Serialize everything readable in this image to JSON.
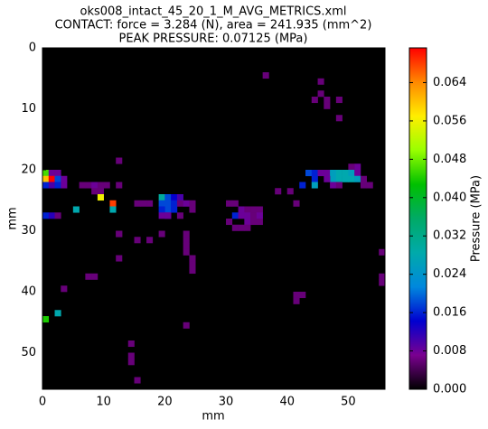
{
  "chart_data": {
    "type": "heatmap",
    "title": [
      "oks008_intact_45_20_1_M_AVG_METRICS.xml",
      "CONTACT: force = 3.284 (N), area = 241.935 (mm^2)",
      "PEAK PRESSURE: 0.07125 (MPa)"
    ],
    "xlabel": "mm",
    "ylabel": "mm",
    "colorbar_label": "Pressure (MPa)",
    "xlim": [
      0,
      56
    ],
    "ylim": [
      56,
      0
    ],
    "xticks": [
      0,
      10,
      20,
      30,
      40,
      50
    ],
    "yticks": [
      0,
      10,
      20,
      30,
      40,
      50
    ],
    "clim": [
      0,
      0.07125
    ],
    "cticks": [
      {
        "value": 0,
        "label": "0.000"
      },
      {
        "value": 0.008,
        "label": "0.008"
      },
      {
        "value": 0.016,
        "label": "0.016"
      },
      {
        "value": 0.024,
        "label": "0.024"
      },
      {
        "value": 0.032,
        "label": "0.032"
      },
      {
        "value": 0.04,
        "label": "0.040"
      },
      {
        "value": 0.048,
        "label": "0.048"
      },
      {
        "value": 0.056,
        "label": "0.056"
      },
      {
        "value": 0.064,
        "label": "0.064"
      }
    ],
    "background": "#000000",
    "colormap": [
      "#000000",
      "#7a0090",
      "#0000d0",
      "#0088dd",
      "#00aaaa",
      "#00aa66",
      "#00c000",
      "#99ff00",
      "#ffee00",
      "#ff8800",
      "#ff0000"
    ],
    "x": [
      36,
      45,
      45,
      44,
      46,
      46,
      48,
      48,
      51,
      50,
      0,
      1,
      2,
      0,
      1,
      2,
      3,
      0,
      1,
      2,
      3,
      6,
      7,
      8,
      9,
      10,
      12,
      8,
      9,
      9,
      11,
      11,
      5,
      0,
      1,
      2,
      12,
      15,
      16,
      17,
      19,
      20,
      21,
      22,
      19,
      20,
      21,
      22,
      23,
      24,
      20,
      21,
      19,
      20,
      22,
      24,
      19,
      20,
      30,
      31,
      32,
      33,
      34,
      35,
      31,
      32,
      33,
      34,
      35,
      30,
      33,
      34,
      35,
      31,
      32,
      33,
      43,
      44,
      45,
      46,
      47,
      48,
      49,
      50,
      51,
      44,
      47,
      48,
      49,
      50,
      51,
      52,
      42,
      44,
      46,
      47,
      48,
      53,
      52,
      38,
      40,
      41,
      12,
      12,
      12,
      15,
      17,
      19,
      23,
      23,
      23,
      23,
      24,
      24,
      24,
      8,
      7,
      3,
      2,
      0,
      23,
      14,
      14,
      14,
      15,
      41,
      42,
      41,
      55,
      55,
      55
    ],
    "y": [
      4,
      5,
      7,
      8,
      8,
      9,
      8,
      11,
      19,
      19,
      20,
      20,
      20,
      21,
      21,
      21,
      21,
      22,
      22,
      22,
      22,
      22,
      22,
      22,
      22,
      22,
      22,
      23,
      23,
      24,
      25,
      26,
      26,
      27,
      27,
      27,
      18,
      25,
      25,
      25,
      24,
      24,
      24,
      24,
      25,
      25,
      25,
      25,
      25,
      25,
      26,
      26,
      26,
      27,
      27,
      26,
      27,
      27,
      25,
      25,
      26,
      26,
      26,
      26,
      27,
      27,
      27,
      27,
      27,
      28,
      28,
      28,
      28,
      29,
      29,
      29,
      20,
      20,
      20,
      20,
      20,
      20,
      20,
      20,
      20,
      21,
      21,
      21,
      21,
      21,
      21,
      21,
      22,
      22,
      21,
      22,
      22,
      22,
      22,
      23,
      23,
      25,
      30,
      30,
      34,
      31,
      31,
      30,
      30,
      31,
      32,
      33,
      34,
      35,
      36,
      37,
      37,
      39,
      43,
      44,
      45,
      48,
      50,
      51,
      54,
      40,
      40,
      41,
      33,
      37,
      38
    ],
    "values": [
      0.006,
      0.006,
      0.006,
      0.006,
      0.006,
      0.006,
      0.006,
      0.006,
      0.008,
      0.006,
      0.046,
      0.008,
      0.008,
      0.06,
      0.07125,
      0.018,
      0.008,
      0.016,
      0.01,
      0.016,
      0.008,
      0.006,
      0.006,
      0.008,
      0.006,
      0.006,
      0.006,
      0.006,
      0.006,
      0.056,
      0.068,
      0.028,
      0.028,
      0.016,
      0.012,
      0.006,
      0.006,
      0.006,
      0.006,
      0.006,
      0.03,
      0.018,
      0.014,
      0.01,
      0.018,
      0.018,
      0.016,
      0.006,
      0.008,
      0.006,
      0.018,
      0.016,
      0.016,
      0.008,
      0.006,
      0.006,
      0.008,
      0.008,
      0.006,
      0.006,
      0.008,
      0.006,
      0.006,
      0.006,
      0.016,
      0.008,
      0.008,
      0.006,
      0.008,
      0.006,
      0.008,
      0.006,
      0.006,
      0.006,
      0.006,
      0.006,
      0.018,
      0.016,
      0.008,
      0.008,
      0.026,
      0.028,
      0.028,
      0.026,
      0.008,
      0.016,
      0.026,
      0.028,
      0.028,
      0.028,
      0.026,
      0.006,
      0.016,
      0.026,
      0.008,
      0.008,
      0.006,
      0.006,
      0.006,
      0.006,
      0.006,
      0.006,
      0.006,
      0.006,
      0.006,
      0.006,
      0.006,
      0.006,
      0.006,
      0.006,
      0.006,
      0.006,
      0.006,
      0.006,
      0.006,
      0.006,
      0.006,
      0.006,
      0.028,
      0.044,
      0.006,
      0.006,
      0.006,
      0.006,
      0.006,
      0.006,
      0.006,
      0.006,
      0.006,
      0.006,
      0.006
    ]
  }
}
